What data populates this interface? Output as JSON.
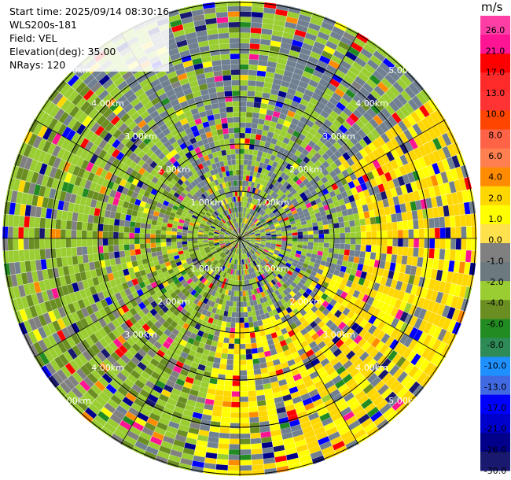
{
  "info": {
    "start_time": "Start time: 2025/09/14 08:30:16",
    "instrument": "WLS200s-181",
    "field": "Field: VEL",
    "elevation": "Elevation(deg): 35.00",
    "nrays": "NRays: 120"
  },
  "colorbar": {
    "unit": "m/s",
    "ticks": [
      "26.0",
      "21.0",
      "17.0",
      "13.0",
      "10.0",
      "8.0",
      "6.0",
      "4.0",
      "2.0",
      "1.0",
      "0.0",
      "-1.0",
      "-2.0",
      "-4.0",
      "-6.0",
      "-8.0",
      "-10.0",
      "-13.0",
      "-17.0",
      "-21.0",
      "-26.0",
      "-30.0"
    ],
    "colors": [
      "#ff3ea5",
      "#ff1493",
      "#ff0000",
      "#ff2a2a",
      "#ff3333",
      "#ff4500",
      "#ff6347",
      "#ff7f50",
      "#ff8c00",
      "#ffd700",
      "#ffff00",
      "#ffe14d",
      "#808080",
      "#6c7a80",
      "#9acd32",
      "#6b8e23",
      "#228b22",
      "#2e8b57",
      "#1e90ff",
      "#4169e1",
      "#0000ff",
      "#0000cd",
      "#00008b",
      "#191970"
    ]
  },
  "ring_labels": [
    "1.00km",
    "2.00km",
    "3.00km",
    "4.00km",
    "5.00km"
  ],
  "palette": [
    "#ffff00",
    "#ffd700",
    "#708090",
    "#808080",
    "#9acd32",
    "#6b8e23",
    "#228b22",
    "#0000ff",
    "#00008b",
    "#191970",
    "#ff1493",
    "#ff0000",
    "#ff8c00"
  ]
}
